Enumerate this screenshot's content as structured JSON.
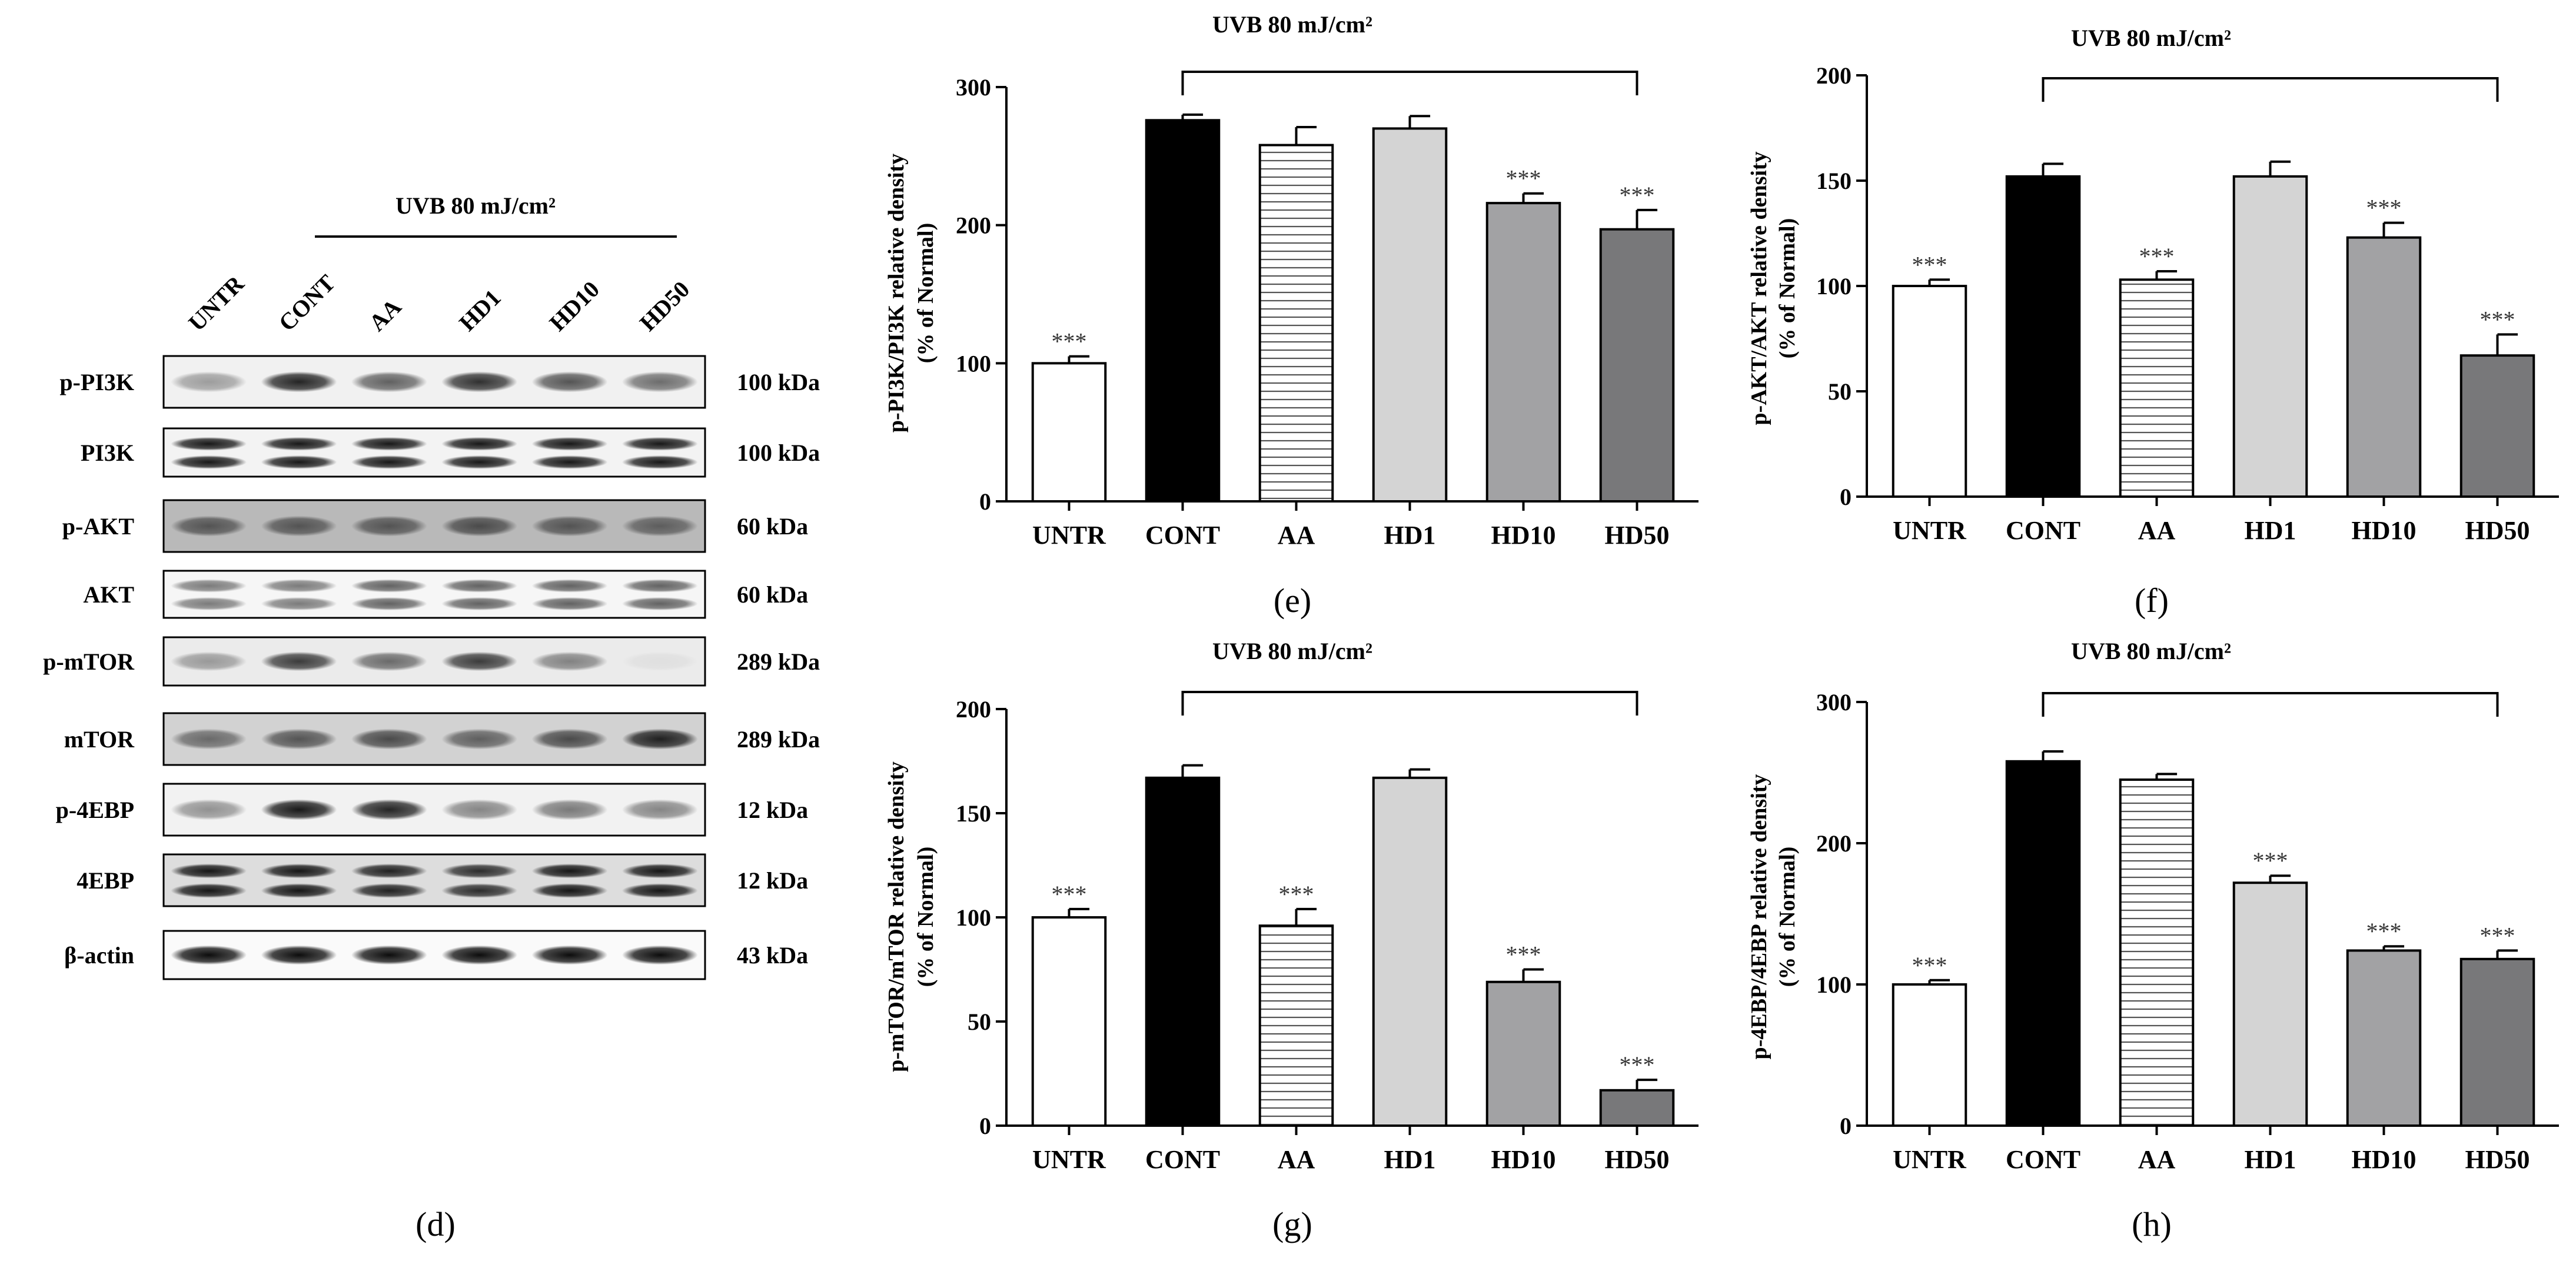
{
  "figure_panels": {
    "d": "(d)",
    "e": "(e)",
    "f": "(f)",
    "g": "(g)",
    "h": "(h)"
  },
  "western_blot": {
    "treatment_label": "UVB 80 mJ/cm²",
    "lanes": [
      "UNTR",
      "CONT",
      "AA",
      "HD1",
      "HD10",
      "HD50"
    ],
    "rows": [
      {
        "protein": "p-PI3K",
        "size": "100 kDa"
      },
      {
        "protein": "PI3K",
        "size": "100 kDa"
      },
      {
        "protein": "p-AKT",
        "size": "60 kDa"
      },
      {
        "protein": "AKT",
        "size": "60 kDa"
      },
      {
        "protein": "p-mTOR",
        "size": "289 kDa"
      },
      {
        "protein": "mTOR",
        "size": "289 kDa"
      },
      {
        "protein": "p-4EBP",
        "size": "12 kDa"
      },
      {
        "protein": "4EBP",
        "size": "12 kDa"
      },
      {
        "protein": "β-actin",
        "size": "43 kDa"
      }
    ]
  },
  "colors": {
    "UNTR": "#ffffff",
    "CONT": "#000000",
    "AA": "#ffffff",
    "HD1": "#d4d4d4",
    "HD10": "#a2a2a4",
    "HD50": "#78787a"
  },
  "chart_data": [
    {
      "id": "e",
      "type": "bar",
      "panel": "(e)",
      "title": "UVB 80 mJ/cm²",
      "ylabel": "p-PI3K/PI3K relative density",
      "ylabel2": "(% of Normal)",
      "categories": [
        "UNTR",
        "CONT",
        "AA",
        "HD1",
        "HD10",
        "HD50"
      ],
      "values": [
        100,
        276,
        258,
        270,
        216,
        197
      ],
      "errors": [
        5,
        4,
        13,
        9,
        7,
        14
      ],
      "significance": [
        "***",
        "",
        "",
        "",
        "***",
        "***"
      ],
      "ylim": [
        0,
        300
      ],
      "yticks": [
        0,
        100,
        200,
        300
      ]
    },
    {
      "id": "f",
      "type": "bar",
      "panel": "(f)",
      "title": "UVB 80 mJ/cm²",
      "ylabel": "p-AKT/AKT relative density",
      "ylabel2": "(% of Normal)",
      "categories": [
        "UNTR",
        "CONT",
        "AA",
        "HD1",
        "HD10",
        "HD50"
      ],
      "values": [
        100,
        152,
        103,
        152,
        123,
        67
      ],
      "errors": [
        3,
        6,
        4,
        7,
        7,
        10
      ],
      "significance": [
        "***",
        "",
        "***",
        "",
        "***",
        "***"
      ],
      "ylim": [
        0,
        200
      ],
      "yticks": [
        0,
        50,
        100,
        150,
        200
      ]
    },
    {
      "id": "g",
      "type": "bar",
      "panel": "(g)",
      "title": "UVB 80 mJ/cm²",
      "ylabel": "p-mTOR/mTOR relative density",
      "ylabel2": "(% of Normal)",
      "categories": [
        "UNTR",
        "CONT",
        "AA",
        "HD1",
        "HD10",
        "HD50"
      ],
      "values": [
        100,
        167,
        96,
        167,
        69,
        17
      ],
      "errors": [
        4,
        6,
        8,
        4,
        6,
        5
      ],
      "significance": [
        "***",
        "",
        "***",
        "",
        "***",
        "***"
      ],
      "ylim": [
        0,
        200
      ],
      "yticks": [
        0,
        50,
        100,
        150,
        200
      ]
    },
    {
      "id": "h",
      "type": "bar",
      "panel": "(h)",
      "title": "UVB 80 mJ/cm²",
      "ylabel": "p-4EBP/4EBP relative density",
      "ylabel2": "(% of Normal)",
      "categories": [
        "UNTR",
        "CONT",
        "AA",
        "HD1",
        "HD10",
        "HD50"
      ],
      "values": [
        100,
        258,
        245,
        172,
        124,
        118
      ],
      "errors": [
        3,
        7,
        4,
        5,
        3,
        6
      ],
      "significance": [
        "***",
        "",
        "",
        "***",
        "***",
        "***"
      ],
      "ylim": [
        0,
        300
      ],
      "yticks": [
        0,
        100,
        200,
        300
      ]
    }
  ]
}
